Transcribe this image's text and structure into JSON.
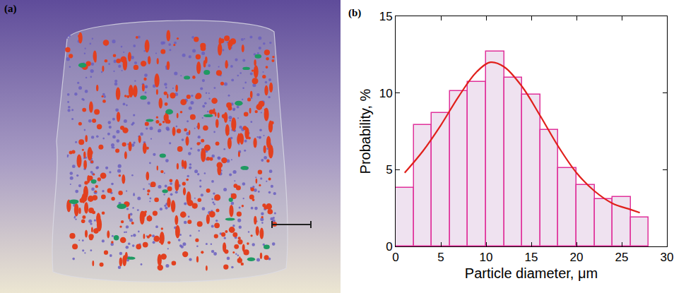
{
  "image_panel": {
    "label": "(a)"
  },
  "chart_data": {
    "type": "histogram",
    "annotations": [
      "(b)"
    ],
    "x_label": "Particle diameter, μm",
    "y_label": "Probability, %",
    "bins": [
      0,
      2,
      4,
      6,
      8,
      10,
      12,
      14,
      16,
      18,
      20,
      22,
      24,
      26,
      28
    ],
    "values": [
      3.8,
      7.9,
      8.7,
      10.1,
      10.7,
      12.7,
      11.0,
      9.9,
      7.6,
      5.1,
      4.0,
      3.1,
      3.2,
      1.9
    ],
    "color": "#efe2f0",
    "curve": {
      "type": "line",
      "color": "#e0201b",
      "x": [
        1,
        3,
        5,
        7,
        9,
        10.5,
        12,
        14,
        16,
        18,
        20,
        22,
        24,
        26,
        27
      ],
      "values": [
        4.8,
        6.2,
        7.9,
        9.8,
        11.4,
        12.0,
        11.7,
        10.4,
        8.5,
        6.5,
        4.8,
        3.6,
        2.8,
        2.4,
        2.2
      ]
    },
    "xlim": [
      0,
      30
    ],
    "xticks": [
      0,
      5,
      10,
      15,
      20,
      25,
      30
    ],
    "ylim": [
      0,
      15
    ],
    "yticks": [
      0,
      5,
      10,
      15
    ],
    "grid": false
  }
}
